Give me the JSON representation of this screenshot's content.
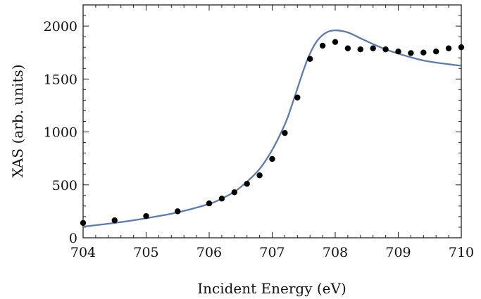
{
  "chart_data": {
    "type": "scatter",
    "title": "",
    "xlabel": "Incident Energy (eV)",
    "ylabel": "XAS (arb. units)",
    "xlim": [
      704,
      710
    ],
    "ylim": [
      0,
      2200
    ],
    "xticks": [
      "704",
      "705",
      "706",
      "707",
      "708",
      "709",
      "710"
    ],
    "yticks": [
      "0",
      "500",
      "1000",
      "1500",
      "2000"
    ],
    "grid": false,
    "legend": "none",
    "series": [
      {
        "kind": "points",
        "color": "#000000",
        "x": [
          704.0,
          704.5,
          705.0,
          705.5,
          706.0,
          706.2,
          706.4,
          706.6,
          706.8,
          707.0,
          707.2,
          707.4,
          707.6,
          707.8,
          708.0,
          708.2,
          708.4,
          708.6,
          708.8,
          709.0,
          709.2,
          709.4,
          709.6,
          709.8,
          710.0
        ],
        "y": [
          140,
          165,
          205,
          250,
          325,
          370,
          430,
          510,
          590,
          745,
          990,
          1325,
          1690,
          1815,
          1850,
          1790,
          1780,
          1790,
          1780,
          1760,
          1745,
          1750,
          1760,
          1790,
          1800
        ]
      },
      {
        "kind": "line",
        "color": "#5b7bb4",
        "x": [
          704.0,
          704.5,
          705.0,
          705.5,
          706.0,
          706.2,
          706.4,
          706.6,
          706.8,
          707.0,
          707.2,
          707.3,
          707.4,
          707.5,
          707.6,
          707.7,
          707.8,
          707.9,
          708.0,
          708.1,
          708.2,
          708.3,
          708.4,
          708.6,
          708.8,
          709.0,
          709.2,
          709.4,
          709.6,
          709.8,
          710.0
        ],
        "y": [
          105,
          140,
          185,
          240,
          320,
          370,
          435,
          530,
          650,
          830,
          1070,
          1230,
          1410,
          1590,
          1740,
          1850,
          1915,
          1950,
          1960,
          1955,
          1940,
          1915,
          1885,
          1830,
          1780,
          1740,
          1705,
          1675,
          1655,
          1640,
          1625
        ]
      }
    ]
  }
}
